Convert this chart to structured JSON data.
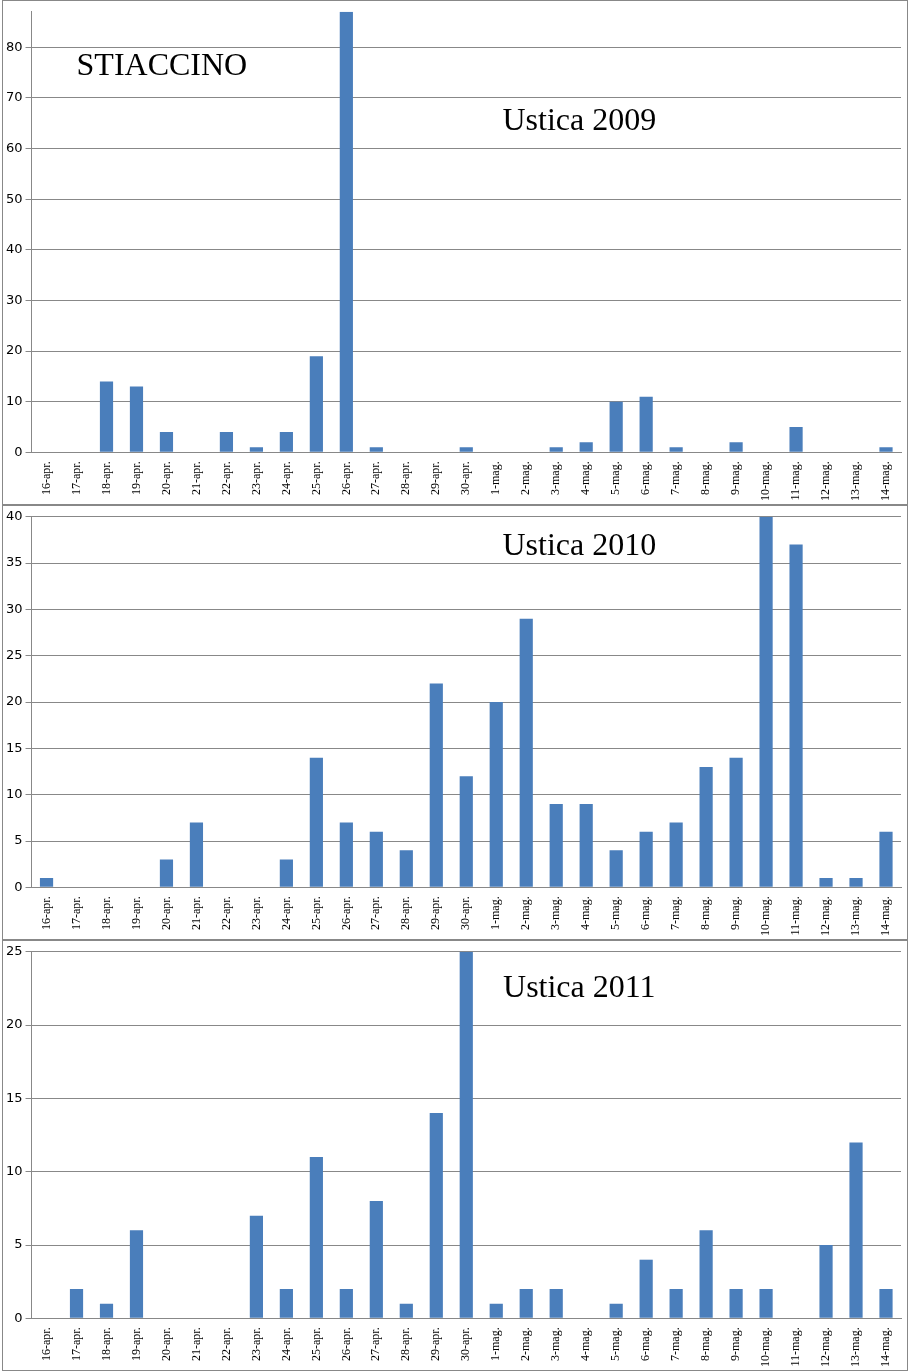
{
  "chart_data": [
    {
      "type": "bar",
      "title": "Ustica 2009",
      "annotations": [
        "STIACCINO"
      ],
      "categories": [
        "16-apr.",
        "17-apr.",
        "18-apr.",
        "19-apr.",
        "20-apr.",
        "21-apr.",
        "22-apr.",
        "23-apr.",
        "24-apr.",
        "25-apr.",
        "26-apr.",
        "27-apr.",
        "28-apr.",
        "29-apr.",
        "30-apr.",
        "1-mag.",
        "2-mag.",
        "3-mag.",
        "4-mag.",
        "5-mag.",
        "6-mag.",
        "7-mag.",
        "8-mag.",
        "9-mag.",
        "10-mag.",
        "11-mag.",
        "12-mag.",
        "13-mag.",
        "14-mag."
      ],
      "values": [
        0,
        0,
        14,
        13,
        4,
        0,
        4,
        1,
        4,
        19,
        87,
        1,
        0,
        0,
        1,
        0,
        0,
        1,
        2,
        10,
        11,
        1,
        0,
        2,
        0,
        5,
        0,
        0,
        1
      ],
      "color": "#4a7ebb",
      "ylim": [
        0,
        87
      ],
      "yticks": [
        0,
        10,
        20,
        30,
        40,
        50,
        60,
        70,
        80
      ],
      "grid": "y",
      "legend": false
    },
    {
      "type": "bar",
      "title": "Ustica 2010",
      "categories": [
        "16-apr.",
        "17-apr.",
        "18-apr.",
        "19-apr.",
        "20-apr.",
        "21-apr.",
        "22-apr.",
        "23-apr.",
        "24-apr.",
        "25-apr.",
        "26-apr.",
        "27-apr.",
        "28-apr.",
        "29-apr.",
        "30-apr.",
        "1-mag.",
        "2-mag.",
        "3-mag.",
        "4-mag.",
        "5-mag.",
        "6-mag.",
        "7-mag.",
        "8-mag.",
        "9-mag.",
        "10-mag.",
        "11-mag.",
        "12-mag.",
        "13-mag.",
        "14-mag."
      ],
      "values": [
        1,
        0,
        0,
        0,
        3,
        7,
        0,
        0,
        3,
        14,
        7,
        6,
        4,
        22,
        12,
        20,
        29,
        9,
        9,
        4,
        6,
        7,
        13,
        14,
        40,
        37,
        1,
        1,
        6
      ],
      "color": "#4a7ebb",
      "ylim": [
        0,
        40
      ],
      "yticks": [
        0,
        5,
        10,
        15,
        20,
        25,
        30,
        35,
        40
      ],
      "grid": "y",
      "legend": false
    },
    {
      "type": "bar",
      "title": "Ustica 2011",
      "categories": [
        "16-apr.",
        "17-apr.",
        "18-apr.",
        "19-apr.",
        "20-apr.",
        "21-apr.",
        "22-apr.",
        "23-apr.",
        "24-apr.",
        "25-apr.",
        "26-apr.",
        "27-apr.",
        "28-apr.",
        "29-apr.",
        "30-apr.",
        "1-mag.",
        "2-mag.",
        "3-mag.",
        "4-mag.",
        "5-mag.",
        "6-mag.",
        "7-mag.",
        "8-mag.",
        "9-mag.",
        "10-mag.",
        "11-mag.",
        "12-mag.",
        "13-mag.",
        "14-mag."
      ],
      "values": [
        0,
        2,
        1,
        6,
        0,
        0,
        0,
        7,
        2,
        11,
        2,
        8,
        1,
        14,
        25,
        1,
        2,
        2,
        0,
        1,
        4,
        2,
        6,
        2,
        2,
        0,
        5,
        12,
        2
      ],
      "color": "#4a7ebb",
      "ylim": [
        0,
        25
      ],
      "yticks": [
        0,
        5,
        10,
        15,
        20,
        25
      ],
      "grid": "y",
      "legend": false
    }
  ]
}
